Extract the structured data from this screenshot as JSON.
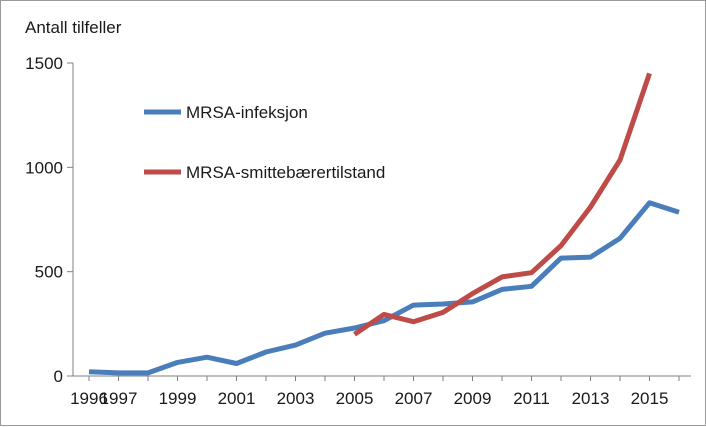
{
  "chart_data": {
    "type": "line",
    "ylabel": "Antall tilfeller",
    "ylim": [
      0,
      1500
    ],
    "yticks": [
      0,
      500,
      1000,
      1500
    ],
    "xlim": [
      1996,
      2015
    ],
    "xticks": [
      1996,
      1997,
      1999,
      2001,
      2003,
      2005,
      2007,
      2009,
      2011,
      2013,
      2015
    ],
    "grid": false,
    "legend_position": "top-left",
    "series": [
      {
        "name": "MRSA-infeksjon",
        "color": "#4a7ebb",
        "points": [
          [
            1996,
            20
          ],
          [
            1997,
            15
          ],
          [
            1998,
            15
          ],
          [
            1999,
            65
          ],
          [
            2000,
            90
          ],
          [
            2001,
            60
          ],
          [
            2002,
            115
          ],
          [
            2003,
            148
          ],
          [
            2004,
            205
          ],
          [
            2005,
            230
          ],
          [
            2006,
            265
          ],
          [
            2007,
            340
          ],
          [
            2008,
            345
          ],
          [
            2009,
            355
          ],
          [
            2010,
            415
          ],
          [
            2011,
            430
          ],
          [
            2012,
            565
          ],
          [
            2013,
            570
          ],
          [
            2014,
            660
          ],
          [
            2015,
            830
          ],
          [
            2016,
            785
          ]
        ]
      },
      {
        "name": "MRSA-smittebærertilstand",
        "color": "#be4b48",
        "points": [
          [
            2005,
            200
          ],
          [
            2006,
            295
          ],
          [
            2007,
            260
          ],
          [
            2008,
            305
          ],
          [
            2009,
            395
          ],
          [
            2010,
            475
          ],
          [
            2011,
            495
          ],
          [
            2012,
            625
          ],
          [
            2013,
            810
          ],
          [
            2014,
            1035
          ],
          [
            2015,
            1450
          ]
        ]
      }
    ]
  }
}
